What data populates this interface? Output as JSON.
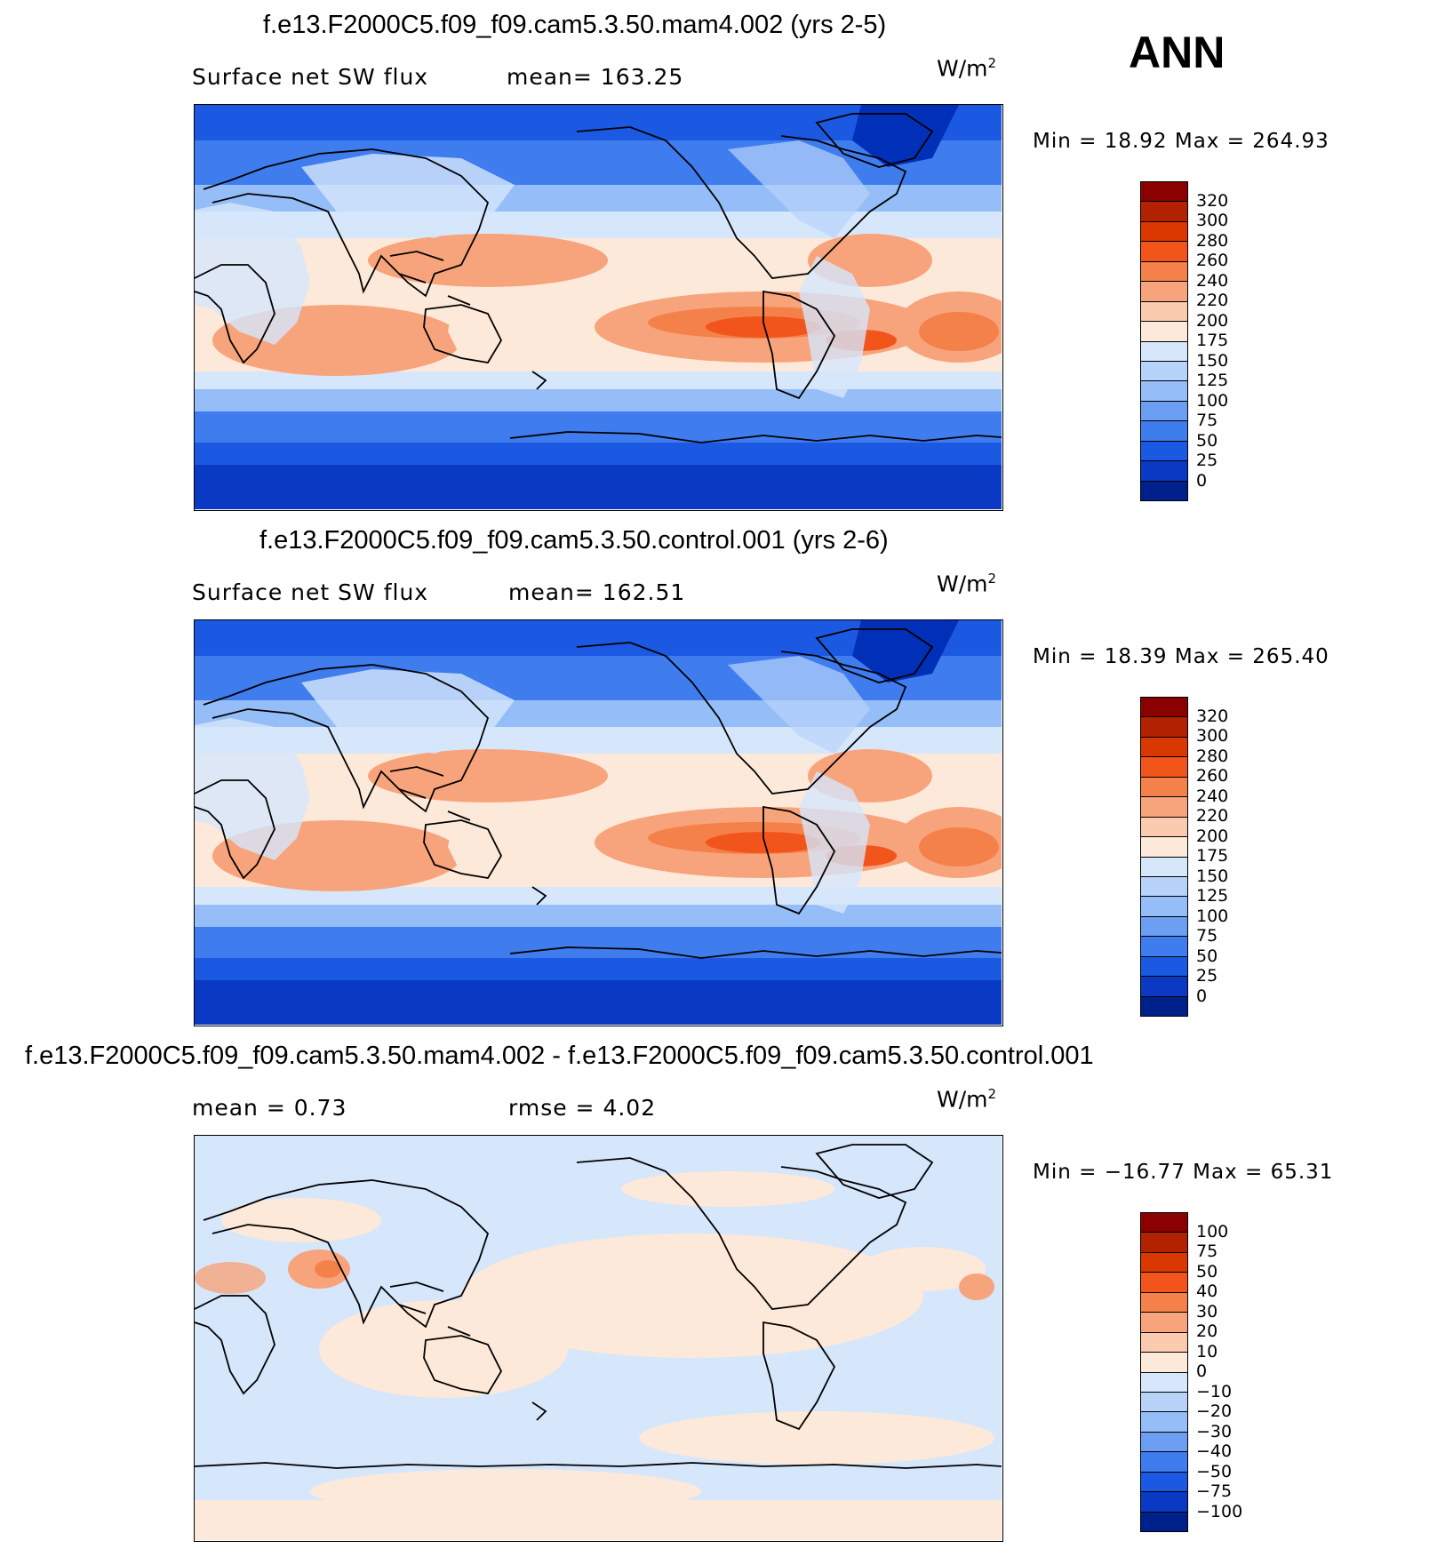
{
  "season": "ANN",
  "units": "W/m",
  "units_exp": "2",
  "panels": [
    {
      "title": "f.e13.F2000C5.f09_f09.cam5.3.50.mam4.002 (yrs 2-5)",
      "left_label": "Surface net SW flux",
      "center_label": "mean=  163.25",
      "minmax": "Min =    18.92  Max  =  264.93",
      "colorbar": {
        "labels": [
          "320",
          "300",
          "280",
          "260",
          "240",
          "220",
          "200",
          "175",
          "150",
          "125",
          "100",
          "75",
          "50",
          "25",
          "0"
        ],
        "colors": [
          "#8b0000",
          "#b22200",
          "#d93800",
          "#f2551c",
          "#f5814a",
          "#f7a47c",
          "#fbcbb0",
          "#fde9d9",
          "#d6e6fb",
          "#b8d3fa",
          "#95bdf7",
          "#6c9ff3",
          "#3f7cee",
          "#1b59e3",
          "#0a3ac4",
          "#00208c"
        ]
      },
      "map_colors": {
        "polar": "#002fb8",
        "south_ocean": "#1b59e3",
        "subpolar": "#3f7cee",
        "mid": "#95bdf7",
        "light": "#d6e6fb",
        "cream": "#fde9d9",
        "warm": "#f7a47c",
        "hot": "#f2551c",
        "land": "#fbcbb0"
      }
    },
    {
      "title": "f.e13.F2000C5.f09_f09.cam5.3.50.control.001 (yrs 2-6)",
      "left_label": "Surface net SW flux",
      "center_label": "mean=  162.51",
      "minmax": "Min =    18.39  Max  =  265.40",
      "colorbar": {
        "labels": [
          "320",
          "300",
          "280",
          "260",
          "240",
          "220",
          "200",
          "175",
          "150",
          "125",
          "100",
          "75",
          "50",
          "25",
          "0"
        ],
        "colors": [
          "#8b0000",
          "#b22200",
          "#d93800",
          "#f2551c",
          "#f5814a",
          "#f7a47c",
          "#fbcbb0",
          "#fde9d9",
          "#d6e6fb",
          "#b8d3fa",
          "#95bdf7",
          "#6c9ff3",
          "#3f7cee",
          "#1b59e3",
          "#0a3ac4",
          "#00208c"
        ]
      },
      "map_colors": {
        "polar": "#002fb8",
        "south_ocean": "#1b59e3",
        "subpolar": "#3f7cee",
        "mid": "#95bdf7",
        "light": "#d6e6fb",
        "cream": "#fde9d9",
        "warm": "#f7a47c",
        "hot": "#f2551c",
        "land": "#fbcbb0"
      }
    },
    {
      "title": "f.e13.F2000C5.f09_f09.cam5.3.50.mam4.002 - f.e13.F2000C5.f09_f09.cam5.3.50.control.001",
      "left_label": "mean =     0.73",
      "center_label": "rmse =     4.02",
      "minmax": "Min = −16.77  Max =    65.31",
      "colorbar": {
        "labels": [
          "100",
          "75",
          "50",
          "40",
          "30",
          "20",
          "10",
          "0",
          "−10",
          "−20",
          "−30",
          "−40",
          "−50",
          "−75",
          "−100"
        ],
        "colors": [
          "#8b0000",
          "#b22200",
          "#d93800",
          "#f2551c",
          "#f5814a",
          "#f7a47c",
          "#fbcbb0",
          "#fde9d9",
          "#d6e6fb",
          "#b8d3fa",
          "#95bdf7",
          "#6c9ff3",
          "#3f7cee",
          "#1b59e3",
          "#0a3ac4",
          "#00208c"
        ]
      },
      "map_colors": {
        "base": "#d6e6fb",
        "pos": "#fde9d9",
        "warm": "#f7a47c"
      }
    }
  ]
}
